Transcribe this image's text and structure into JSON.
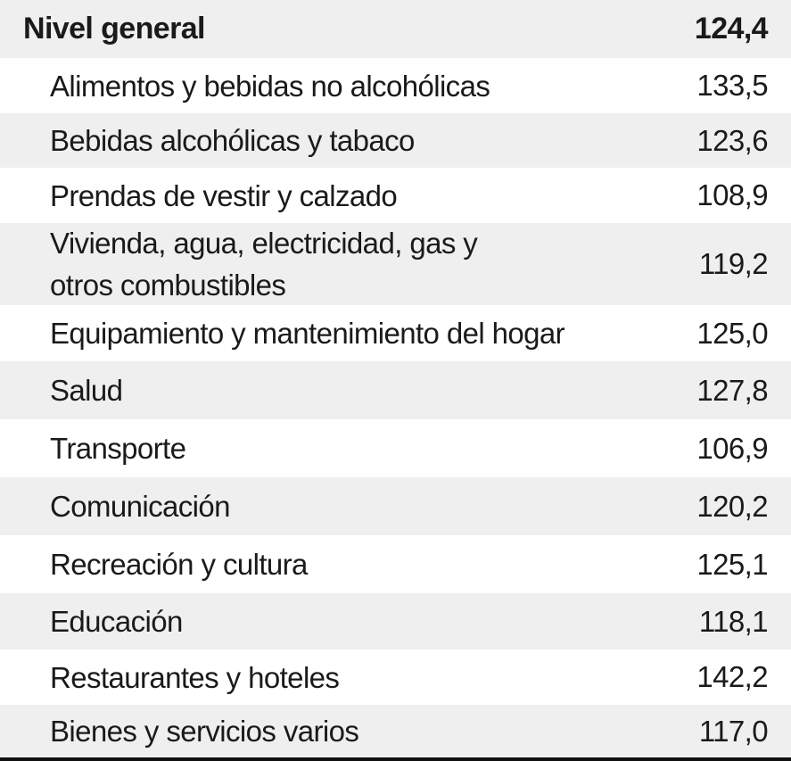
{
  "table": {
    "header": {
      "label": "Nivel general",
      "value": "124,4"
    },
    "rows": [
      {
        "label": "Alimentos y bebidas no alcohólicas",
        "value": "133,5"
      },
      {
        "label": "Bebidas alcohólicas y tabaco",
        "value": "123,6"
      },
      {
        "label": "Prendas de vestir y calzado",
        "value": "108,9"
      },
      {
        "label": "Vivienda, agua, electricidad, gas y otros combustibles",
        "value": "119,2"
      },
      {
        "label": "Equipamiento y mantenimiento del hogar",
        "value": "125,0"
      },
      {
        "label": "Salud",
        "value": "127,8"
      },
      {
        "label": "Transporte",
        "value": "106,9"
      },
      {
        "label": "Comunicación",
        "value": "120,2"
      },
      {
        "label": "Recreación y cultura",
        "value": "125,1"
      },
      {
        "label": "Educación",
        "value": "118,1"
      },
      {
        "label": "Restaurantes y hoteles",
        "value": "142,2"
      },
      {
        "label": "Bienes y servicios varios",
        "value": "117,0"
      }
    ]
  }
}
